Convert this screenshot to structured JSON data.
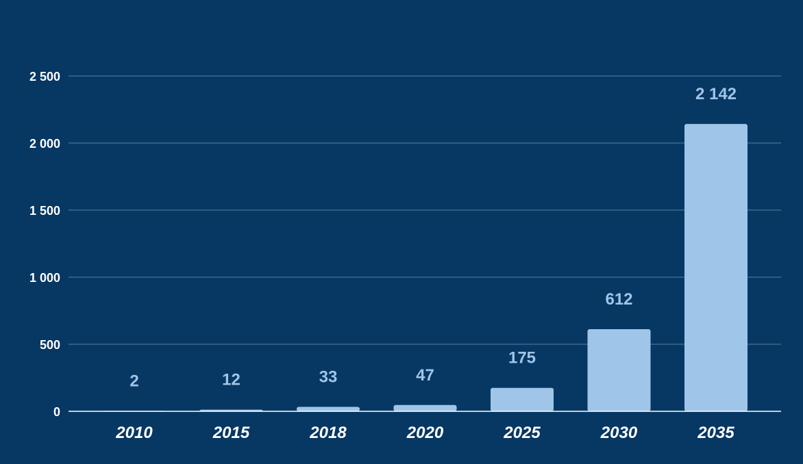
{
  "colors": {
    "background": "#073763",
    "bar": "#9fc5e8",
    "data_label": "#9fc5e8",
    "tick_text": "#ffffff",
    "gridline": "#5b7fa6"
  },
  "chart_data": {
    "type": "bar",
    "title": "",
    "xlabel": "",
    "ylabel": "",
    "categories": [
      "2010",
      "2015",
      "2018",
      "2020",
      "2025",
      "2030",
      "2035"
    ],
    "values": [
      2,
      12,
      33,
      47,
      175,
      612,
      2142
    ],
    "value_labels": [
      "2",
      "12",
      "33",
      "47",
      "175",
      "612",
      "2 142"
    ],
    "ylim": [
      0,
      2500
    ],
    "yticks": [
      0,
      500,
      1000,
      1500,
      2000,
      2500
    ],
    "ytick_labels": [
      "0",
      "500",
      "1 000",
      "1 500",
      "2 000",
      "2 500"
    ],
    "grid": true,
    "legend": "none"
  }
}
